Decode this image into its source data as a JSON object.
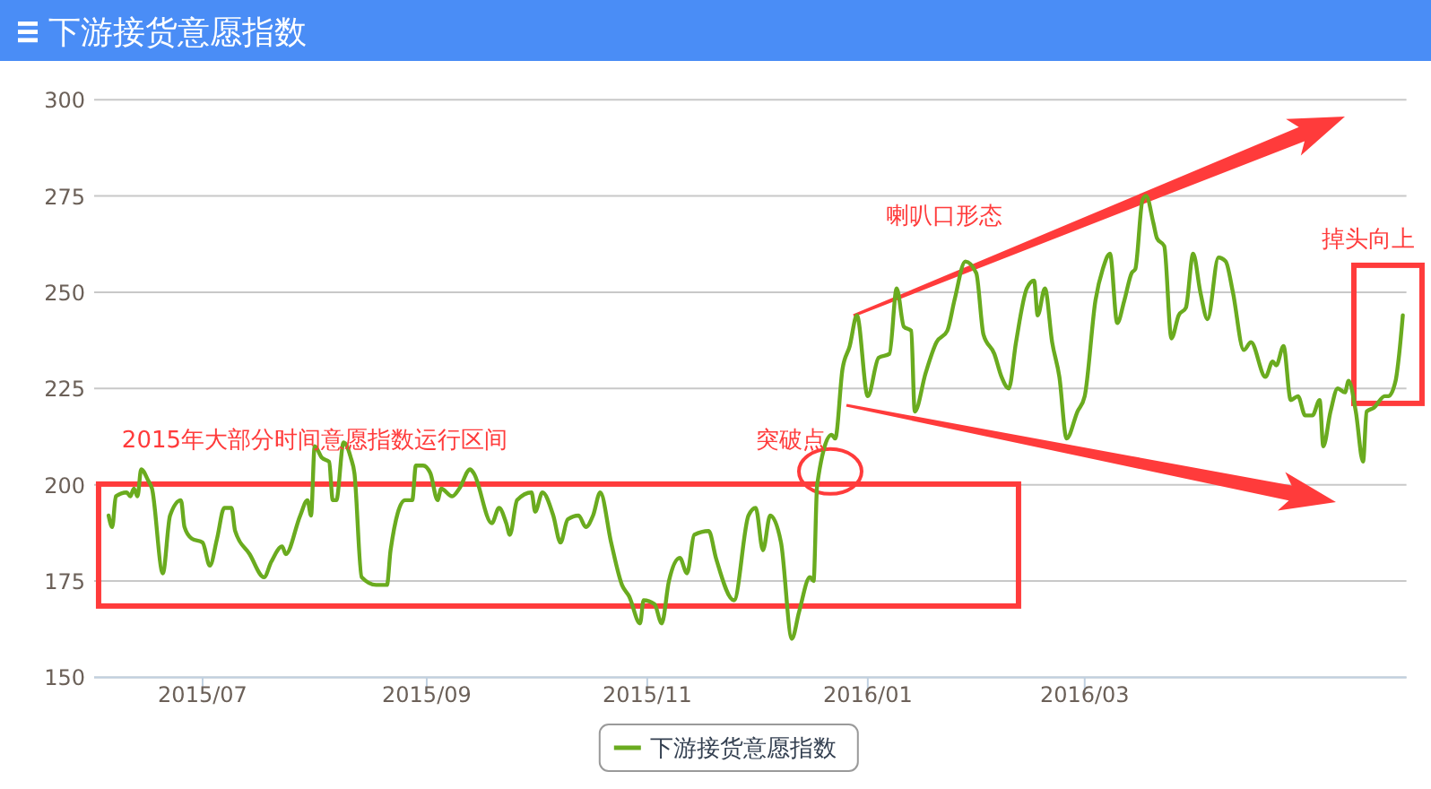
{
  "chart_data": {
    "type": "line",
    "title": "下游接货意愿指数",
    "x": [
      "2015-06-05",
      "2015-06-06",
      "2015-06-07",
      "2015-06-10",
      "2015-06-11",
      "2015-06-12",
      "2015-06-13",
      "2015-06-14",
      "2015-06-16",
      "2015-06-17",
      "2015-06-20",
      "2015-06-22",
      "2015-06-25",
      "2015-06-26",
      "2015-06-28",
      "2015-07-01",
      "2015-07-03",
      "2015-07-05",
      "2015-07-07",
      "2015-07-09",
      "2015-07-10",
      "2015-07-14",
      "2015-07-18",
      "2015-07-20",
      "2015-07-23",
      "2015-07-24",
      "2015-07-28",
      "2015-07-30",
      "2015-07-31",
      "2015-08-01",
      "2015-08-03",
      "2015-08-05",
      "2015-08-06",
      "2015-08-07",
      "2015-08-09",
      "2015-08-11",
      "2015-08-12",
      "2015-08-14",
      "2015-08-18",
      "2015-08-21",
      "2015-08-22",
      "2015-08-26",
      "2015-08-28",
      "2015-08-29",
      "2015-08-31",
      "2015-09-02",
      "2015-09-04",
      "2015-09-05",
      "2015-09-08",
      "2015-09-10",
      "2015-09-13",
      "2015-09-14",
      "2015-09-19",
      "2015-09-21",
      "2015-09-23",
      "2015-09-24",
      "2015-09-26",
      "2015-09-30",
      "2015-10-01",
      "2015-10-03",
      "2015-10-06",
      "2015-10-08",
      "2015-10-10",
      "2015-10-13",
      "2015-10-15",
      "2015-10-17",
      "2015-10-19",
      "2015-10-22",
      "2015-10-25",
      "2015-10-27",
      "2015-10-30",
      "2015-10-31",
      "2015-11-03",
      "2015-11-05",
      "2015-11-07",
      "2015-11-10",
      "2015-11-12",
      "2015-11-14",
      "2015-11-18",
      "2015-11-20",
      "2015-11-25",
      "2015-11-29",
      "2015-12-01",
      "2015-12-03",
      "2015-12-05",
      "2015-12-08",
      "2015-12-11",
      "2015-12-13",
      "2015-12-16",
      "2015-12-17",
      "2015-12-18",
      "2015-12-22",
      "2015-12-23",
      "2015-12-25",
      "2015-12-27",
      "2015-12-29",
      "2016-01-01",
      "2016-01-04",
      "2016-01-07",
      "2016-01-09",
      "2016-01-11",
      "2016-01-13",
      "2016-01-14",
      "2016-01-17",
      "2016-01-20",
      "2016-01-23",
      "2016-01-25",
      "2016-01-28",
      "2016-01-31",
      "2016-02-02",
      "2016-02-05",
      "2016-02-07",
      "2016-02-09",
      "2016-02-11",
      "2016-02-14",
      "2016-02-16",
      "2016-02-17",
      "2016-02-19",
      "2016-02-21",
      "2016-02-23",
      "2016-02-25",
      "2016-02-28",
      "2016-03-01",
      "2016-03-04",
      "2016-03-06",
      "2016-03-08",
      "2016-03-10",
      "2016-03-12",
      "2016-03-14",
      "2016-03-15",
      "2016-03-17",
      "2016-03-18",
      "2016-03-20",
      "2016-03-21",
      "2016-03-23",
      "2016-03-25",
      "2016-03-27",
      "2016-03-29",
      "2016-03-31",
      "2016-04-02",
      "2016-04-04",
      "2016-04-07",
      "2016-04-09",
      "2016-04-11",
      "2016-04-14",
      "2016-04-16",
      "2016-04-20",
      "2016-04-22",
      "2016-04-23",
      "2016-04-25",
      "2016-04-27",
      "2016-04-29",
      "2016-05-01",
      "2016-05-03",
      "2016-05-05",
      "2016-05-06",
      "2016-05-08",
      "2016-05-10",
      "2016-05-12",
      "2016-05-13",
      "2016-05-15",
      "2016-05-17",
      "2016-05-18",
      "2016-05-20",
      "2016-05-23",
      "2016-05-24",
      "2016-05-26",
      "2016-05-27",
      "2016-05-28"
    ],
    "series": [
      {
        "name": "下游接货意愿指数",
        "color": "#6aab1f",
        "values": [
          192,
          189,
          197,
          198,
          197,
          199,
          197,
          204,
          201,
          199,
          177,
          192,
          196,
          189,
          186,
          185,
          179,
          186,
          194,
          194,
          188,
          182,
          176,
          180,
          184,
          182,
          192,
          196,
          192,
          210,
          207,
          206,
          196,
          196,
          211,
          207,
          203,
          176,
          174,
          174,
          183,
          196,
          196,
          205,
          205,
          203,
          196,
          199,
          197,
          199,
          204,
          203,
          190,
          194,
          190,
          187,
          196,
          198,
          193,
          198,
          192,
          185,
          191,
          192,
          189,
          192,
          198,
          185,
          174,
          171,
          164,
          170,
          169,
          164,
          175,
          181,
          177,
          187,
          188,
          181,
          170,
          192,
          194,
          183,
          192,
          185,
          160,
          167,
          176,
          175,
          200,
          213,
          212,
          230,
          236,
          244,
          223,
          233,
          234,
          251,
          241,
          240,
          219,
          229,
          237,
          240,
          248,
          258,
          255,
          239,
          234,
          228,
          225,
          237,
          251,
          253,
          244,
          251,
          237,
          228,
          212,
          219,
          223,
          248,
          256,
          260,
          242,
          248,
          255,
          256,
          274,
          275,
          268,
          264,
          262,
          238,
          244,
          246,
          260,
          250,
          243,
          259,
          258,
          250,
          235,
          237,
          228,
          232,
          231,
          236,
          222,
          223,
          218,
          218,
          222,
          210,
          219,
          225,
          224,
          227,
          219,
          206,
          219,
          220,
          223,
          223,
          227,
          234,
          244
        ]
      }
    ],
    "xlim": [
      "2015-06-01",
      "2016-05-29"
    ],
    "xticks": [
      {
        "value": "2015-07-01",
        "label": "2015/07"
      },
      {
        "value": "2015-09-01",
        "label": "2015/09"
      },
      {
        "value": "2015-11-01",
        "label": "2015/11"
      },
      {
        "value": "2016-01-01",
        "label": "2016/01"
      },
      {
        "value": "2016-03-01",
        "label": "2016/03"
      }
    ],
    "ylim": [
      150,
      300
    ],
    "yticks": [
      150,
      175,
      200,
      225,
      250,
      275,
      300
    ],
    "grid": "y",
    "legend": "bottom",
    "annotations": [
      {
        "text": "2015年大部分时间意愿指数运行区间",
        "x": "2015-08-01",
        "y": 208
      },
      {
        "text": "突破点",
        "x": "2015-12-18",
        "y": 200
      },
      "喇叭口形态",
      {
        "text": "掉头向上",
        "x": "2016-05-28",
        "y": 244
      }
    ]
  }
}
